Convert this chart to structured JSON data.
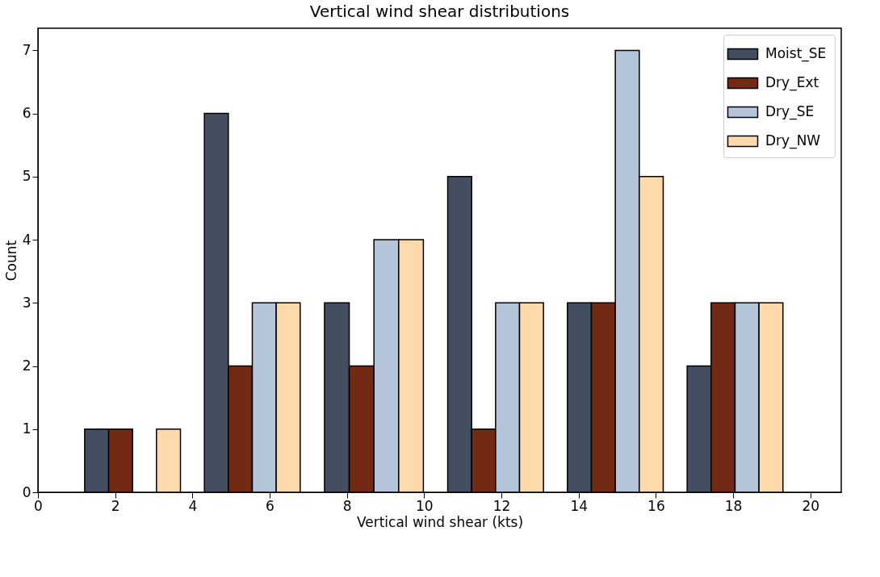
{
  "chart_data": {
    "type": "histogram",
    "title": "Vertical wind shear distributions",
    "xlabel": "Vertical wind shear (kts)",
    "ylabel": "Count",
    "bins": [
      0.9,
      4.0,
      7.1,
      10.3,
      13.4,
      16.5,
      19.6
    ],
    "series": [
      {
        "name": "Moist_SE",
        "color": "#434e60",
        "values": [
          1,
          6,
          3,
          5,
          3,
          2
        ]
      },
      {
        "name": "Dry_Ext",
        "color": "#722a14",
        "values": [
          1,
          2,
          2,
          1,
          3,
          3
        ]
      },
      {
        "name": "Dry_SE",
        "color": "#b4c4d9",
        "values": [
          0,
          3,
          4,
          3,
          7,
          3
        ]
      },
      {
        "name": "Dry_NW",
        "color": "#fdd9ab",
        "values": [
          1,
          3,
          4,
          3,
          5,
          3
        ]
      }
    ],
    "xlim": [
      0,
      20.8
    ],
    "xticks": [
      0,
      2,
      4,
      6,
      8,
      10,
      12,
      14,
      16,
      18,
      20
    ],
    "ylim": [
      0,
      7.35
    ],
    "yticks": [
      0,
      1,
      2,
      3,
      4,
      5,
      6,
      7
    ],
    "legend": "top right"
  }
}
